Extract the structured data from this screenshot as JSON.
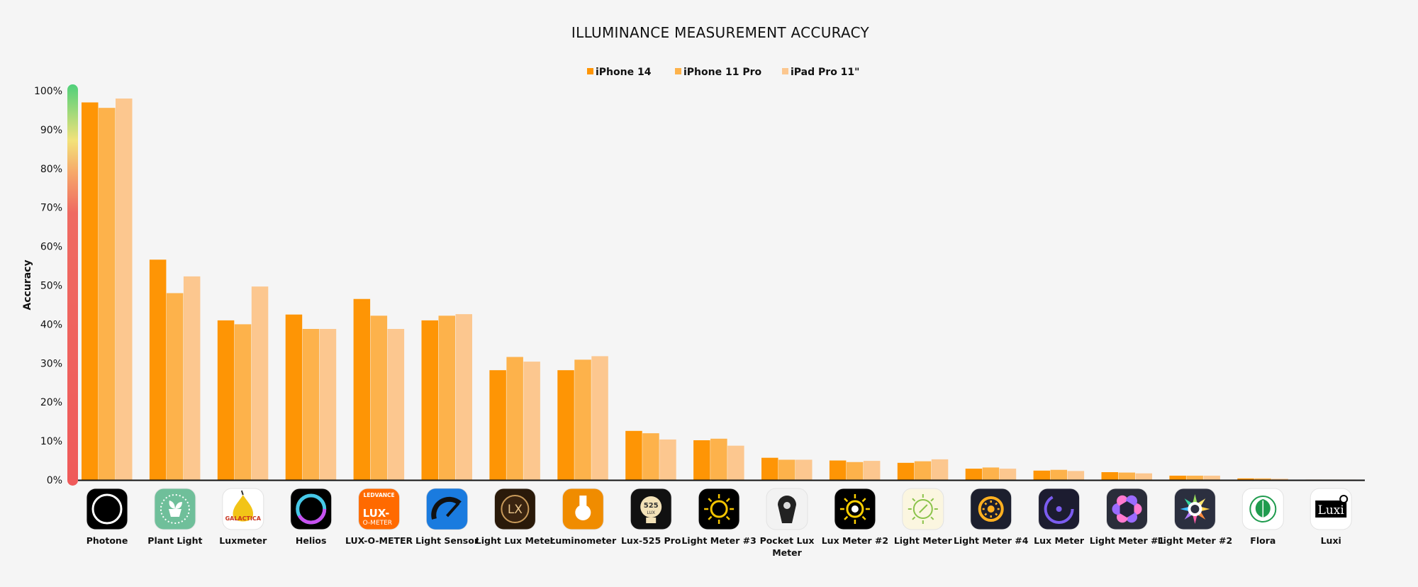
{
  "chart_data": {
    "type": "bar",
    "title": "ILLUMINANCE MEASUREMENT ACCURACY",
    "ylabel": "Accuracy",
    "xlabel": "",
    "ylim": [
      0,
      100
    ],
    "yticks": [
      "0%",
      "10%",
      "20%",
      "30%",
      "40%",
      "50%",
      "60%",
      "70%",
      "80%",
      "90%",
      "100%"
    ],
    "grid": false,
    "legend_position": "top-center",
    "categories": [
      "Photone",
      "Plant Light",
      "Luxmeter",
      "Helios",
      "LUX-O-METER",
      "Light Sensor",
      "Light Lux Meter",
      "Luminometer",
      "Lux-525 Pro",
      "Light Meter #3",
      "Pocket Lux Meter",
      "Lux Meter #2",
      "Light Meter",
      "Light Meter #4",
      "Lux Meter",
      "Light Meter #1",
      "Light Meter #2",
      "Flora",
      "Luxi"
    ],
    "series": [
      {
        "name": "iPhone 14",
        "color": "#fe9505",
        "values": [
          97.0,
          56.6,
          41.0,
          42.5,
          46.5,
          41.0,
          28.2,
          28.2,
          12.6,
          10.2,
          5.7,
          5.0,
          4.4,
          2.9,
          2.4,
          2.0,
          1.1,
          0.4,
          0.1
        ]
      },
      {
        "name": "iPhone 11 Pro",
        "color": "#fdb24b",
        "values": [
          95.6,
          48.0,
          40.0,
          38.8,
          42.2,
          42.2,
          31.6,
          30.9,
          12.0,
          10.6,
          5.2,
          4.6,
          4.8,
          3.2,
          2.6,
          1.9,
          1.1,
          0.4,
          0.1
        ]
      },
      {
        "name": "iPad Pro 11\"",
        "color": "#fcc78f",
        "values": [
          98.0,
          52.3,
          49.7,
          38.8,
          38.8,
          42.6,
          30.4,
          31.8,
          10.4,
          8.8,
          5.2,
          4.9,
          5.3,
          2.9,
          2.3,
          1.7,
          1.1,
          0.3,
          0.1
        ]
      }
    ]
  },
  "icons": [
    {
      "name": "photone-icon",
      "bg": "#000000"
    },
    {
      "name": "plant-light-icon",
      "bg": "#6fbf9a"
    },
    {
      "name": "luxmeter-icon",
      "bg": "#ffffff",
      "text": "GALACTICA"
    },
    {
      "name": "helios-icon",
      "bg": "#000000"
    },
    {
      "name": "lux-o-meter-icon",
      "bg": "#ff6a00",
      "brand": "LEDVANCE",
      "text1": "LUX-",
      "text2": "O-METER"
    },
    {
      "name": "light-sensor-icon",
      "bg": "#1e90ff"
    },
    {
      "name": "light-lux-meter-icon",
      "bg": "#2a1a0a",
      "text": "LX"
    },
    {
      "name": "luminometer-icon",
      "bg": "#f08c00"
    },
    {
      "name": "lux-525-pro-icon",
      "bg": "#111111",
      "text1": "525",
      "text2": "LUX"
    },
    {
      "name": "light-meter-3-icon",
      "bg": "#000000"
    },
    {
      "name": "pocket-lux-meter-icon",
      "bg": "#f2f2f2"
    },
    {
      "name": "lux-meter-2-icon",
      "bg": "#000000"
    },
    {
      "name": "light-meter-icon",
      "bg": "#fbf6e0"
    },
    {
      "name": "light-meter-4-icon",
      "bg": "#1c1f2e"
    },
    {
      "name": "lux-meter-icon",
      "bg": "#1c1c30"
    },
    {
      "name": "light-meter-1-icon",
      "bg": "#2a2d3a"
    },
    {
      "name": "light-meter-2-icon",
      "bg": "#2b2f3f"
    },
    {
      "name": "flora-icon",
      "bg": "#ffffff"
    },
    {
      "name": "luxi-icon",
      "bg": "#ffffff",
      "text": "Luxi"
    }
  ]
}
